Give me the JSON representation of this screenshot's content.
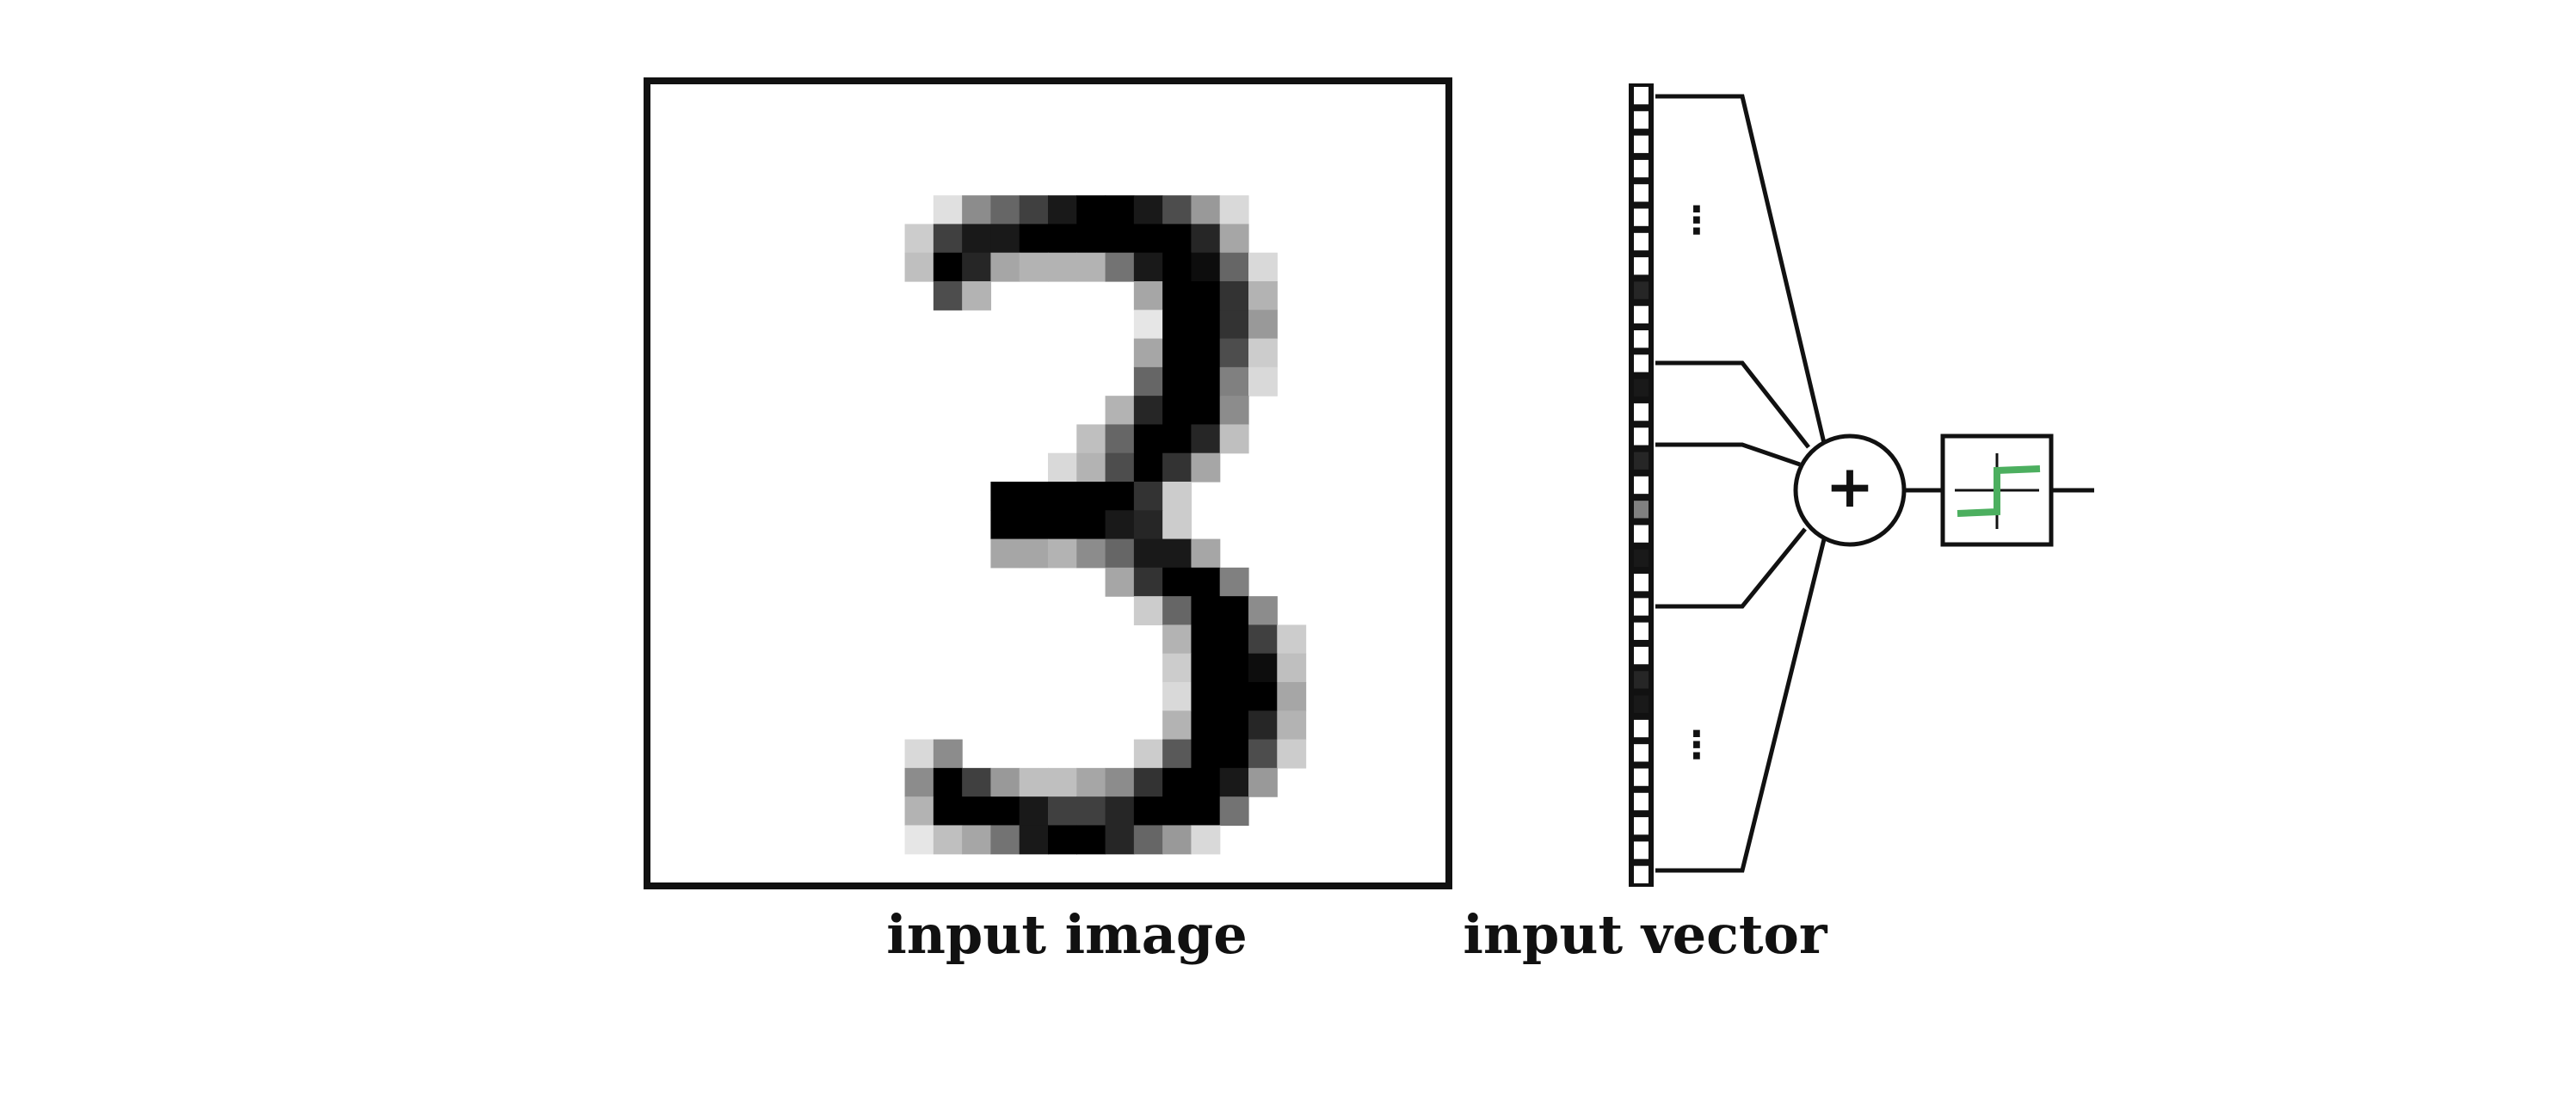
{
  "labels": {
    "input_image": "input image",
    "input_vector": "input vector",
    "sum_symbol": "+"
  },
  "ellipsis": "⋮",
  "colors": {
    "stroke": "#111111",
    "activation": "#4caf5f",
    "background": "#ffffff"
  },
  "input_vector": {
    "cells": [
      0,
      0,
      0,
      0,
      0,
      0,
      0,
      0,
      0.85,
      0,
      0,
      0,
      0.9,
      0,
      0,
      0.85,
      0,
      0.5,
      0,
      0.9,
      0,
      0,
      0,
      0,
      0.85,
      0.9,
      0,
      0,
      0,
      0,
      0,
      0,
      0
    ]
  },
  "digit": {
    "grid_size": 28,
    "shown": "3",
    "rows": {
      "4": [
        [
          10,
          0.12
        ],
        [
          11,
          0.45
        ],
        [
          12,
          0.6
        ],
        [
          13,
          0.75
        ],
        [
          14,
          0.9
        ],
        [
          15,
          1
        ],
        [
          16,
          1
        ],
        [
          17,
          0.9
        ],
        [
          18,
          0.7
        ],
        [
          19,
          0.4
        ],
        [
          20,
          0.15
        ]
      ],
      "5": [
        [
          9,
          0.2
        ],
        [
          10,
          0.75
        ],
        [
          11,
          0.9
        ],
        [
          12,
          0.9
        ],
        [
          13,
          1
        ],
        [
          14,
          1
        ],
        [
          15,
          1
        ],
        [
          16,
          1
        ],
        [
          17,
          1
        ],
        [
          18,
          1
        ],
        [
          19,
          0.85
        ],
        [
          20,
          0.35
        ]
      ],
      "6": [
        [
          9,
          0.25
        ],
        [
          10,
          1
        ],
        [
          11,
          0.85
        ],
        [
          12,
          0.35
        ],
        [
          13,
          0.3
        ],
        [
          14,
          0.3
        ],
        [
          15,
          0.3
        ],
        [
          16,
          0.55
        ],
        [
          17,
          0.9
        ],
        [
          18,
          1
        ],
        [
          19,
          0.95
        ],
        [
          20,
          0.6
        ],
        [
          21,
          0.15
        ]
      ],
      "7": [
        [
          10,
          0.7
        ],
        [
          11,
          0.3
        ],
        [
          17,
          0.35
        ],
        [
          18,
          1
        ],
        [
          19,
          1
        ],
        [
          20,
          0.8
        ],
        [
          21,
          0.3
        ]
      ],
      "8": [
        [
          17,
          0.1
        ],
        [
          18,
          1
        ],
        [
          19,
          1
        ],
        [
          20,
          0.8
        ],
        [
          21,
          0.4
        ]
      ],
      "9": [
        [
          17,
          0.35
        ],
        [
          18,
          1
        ],
        [
          19,
          1
        ],
        [
          20,
          0.7
        ],
        [
          21,
          0.2
        ]
      ],
      "10": [
        [
          17,
          0.6
        ],
        [
          18,
          1
        ],
        [
          19,
          1
        ],
        [
          20,
          0.5
        ],
        [
          21,
          0.15
        ]
      ],
      "11": [
        [
          16,
          0.3
        ],
        [
          17,
          0.85
        ],
        [
          18,
          1
        ],
        [
          19,
          1
        ],
        [
          20,
          0.45
        ]
      ],
      "12": [
        [
          15,
          0.25
        ],
        [
          16,
          0.6
        ],
        [
          17,
          1
        ],
        [
          18,
          1
        ],
        [
          19,
          0.85
        ],
        [
          20,
          0.25
        ]
      ],
      "13": [
        [
          14,
          0.15
        ],
        [
          15,
          0.3
        ],
        [
          16,
          0.7
        ],
        [
          17,
          1
        ],
        [
          18,
          0.8
        ],
        [
          19,
          0.35
        ]
      ],
      "14": [
        [
          12,
          1
        ],
        [
          13,
          1
        ],
        [
          14,
          1
        ],
        [
          15,
          1
        ],
        [
          16,
          1
        ],
        [
          17,
          0.8
        ],
        [
          18,
          0.2
        ]
      ],
      "15": [
        [
          12,
          1
        ],
        [
          13,
          1
        ],
        [
          14,
          1
        ],
        [
          15,
          1
        ],
        [
          16,
          0.9
        ],
        [
          17,
          0.85
        ],
        [
          18,
          0.2
        ]
      ],
      "16": [
        [
          12,
          0.35
        ],
        [
          13,
          0.35
        ],
        [
          14,
          0.3
        ],
        [
          15,
          0.45
        ],
        [
          16,
          0.6
        ],
        [
          17,
          0.9
        ],
        [
          18,
          0.9
        ],
        [
          19,
          0.35
        ]
      ],
      "17": [
        [
          16,
          0.35
        ],
        [
          17,
          0.8
        ],
        [
          18,
          1
        ],
        [
          19,
          1
        ],
        [
          20,
          0.5
        ]
      ],
      "18": [
        [
          17,
          0.2
        ],
        [
          18,
          0.6
        ],
        [
          19,
          1
        ],
        [
          20,
          1
        ],
        [
          21,
          0.45
        ]
      ],
      "19": [
        [
          18,
          0.3
        ],
        [
          19,
          1
        ],
        [
          20,
          1
        ],
        [
          21,
          0.75
        ],
        [
          22,
          0.2
        ]
      ],
      "20": [
        [
          18,
          0.2
        ],
        [
          19,
          1
        ],
        [
          20,
          1
        ],
        [
          21,
          0.95
        ],
        [
          22,
          0.25
        ]
      ],
      "21": [
        [
          18,
          0.15
        ],
        [
          19,
          1
        ],
        [
          20,
          1
        ],
        [
          21,
          1
        ],
        [
          22,
          0.35
        ]
      ],
      "22": [
        [
          18,
          0.3
        ],
        [
          19,
          1
        ],
        [
          20,
          1
        ],
        [
          21,
          0.85
        ],
        [
          22,
          0.3
        ]
      ],
      "23": [
        [
          9,
          0.15
        ],
        [
          10,
          0.45
        ],
        [
          17,
          0.2
        ],
        [
          18,
          0.65
        ],
        [
          19,
          1
        ],
        [
          20,
          1
        ],
        [
          21,
          0.7
        ],
        [
          22,
          0.2
        ]
      ],
      "24": [
        [
          9,
          0.45
        ],
        [
          10,
          1
        ],
        [
          11,
          0.75
        ],
        [
          12,
          0.4
        ],
        [
          13,
          0.25
        ],
        [
          14,
          0.25
        ],
        [
          15,
          0.35
        ],
        [
          16,
          0.45
        ],
        [
          17,
          0.8
        ],
        [
          18,
          1
        ],
        [
          19,
          1
        ],
        [
          20,
          0.9
        ],
        [
          21,
          0.4
        ]
      ],
      "25": [
        [
          9,
          0.3
        ],
        [
          10,
          1
        ],
        [
          11,
          1
        ],
        [
          12,
          1
        ],
        [
          13,
          0.9
        ],
        [
          14,
          0.75
        ],
        [
          15,
          0.75
        ],
        [
          16,
          0.85
        ],
        [
          17,
          1
        ],
        [
          18,
          1
        ],
        [
          19,
          1
        ],
        [
          20,
          0.55
        ]
      ],
      "26": [
        [
          9,
          0.1
        ],
        [
          10,
          0.25
        ],
        [
          11,
          0.35
        ],
        [
          12,
          0.55
        ],
        [
          13,
          0.9
        ],
        [
          14,
          1
        ],
        [
          15,
          1
        ],
        [
          16,
          0.85
        ],
        [
          17,
          0.6
        ],
        [
          18,
          0.4
        ],
        [
          19,
          0.15
        ]
      ]
    }
  }
}
